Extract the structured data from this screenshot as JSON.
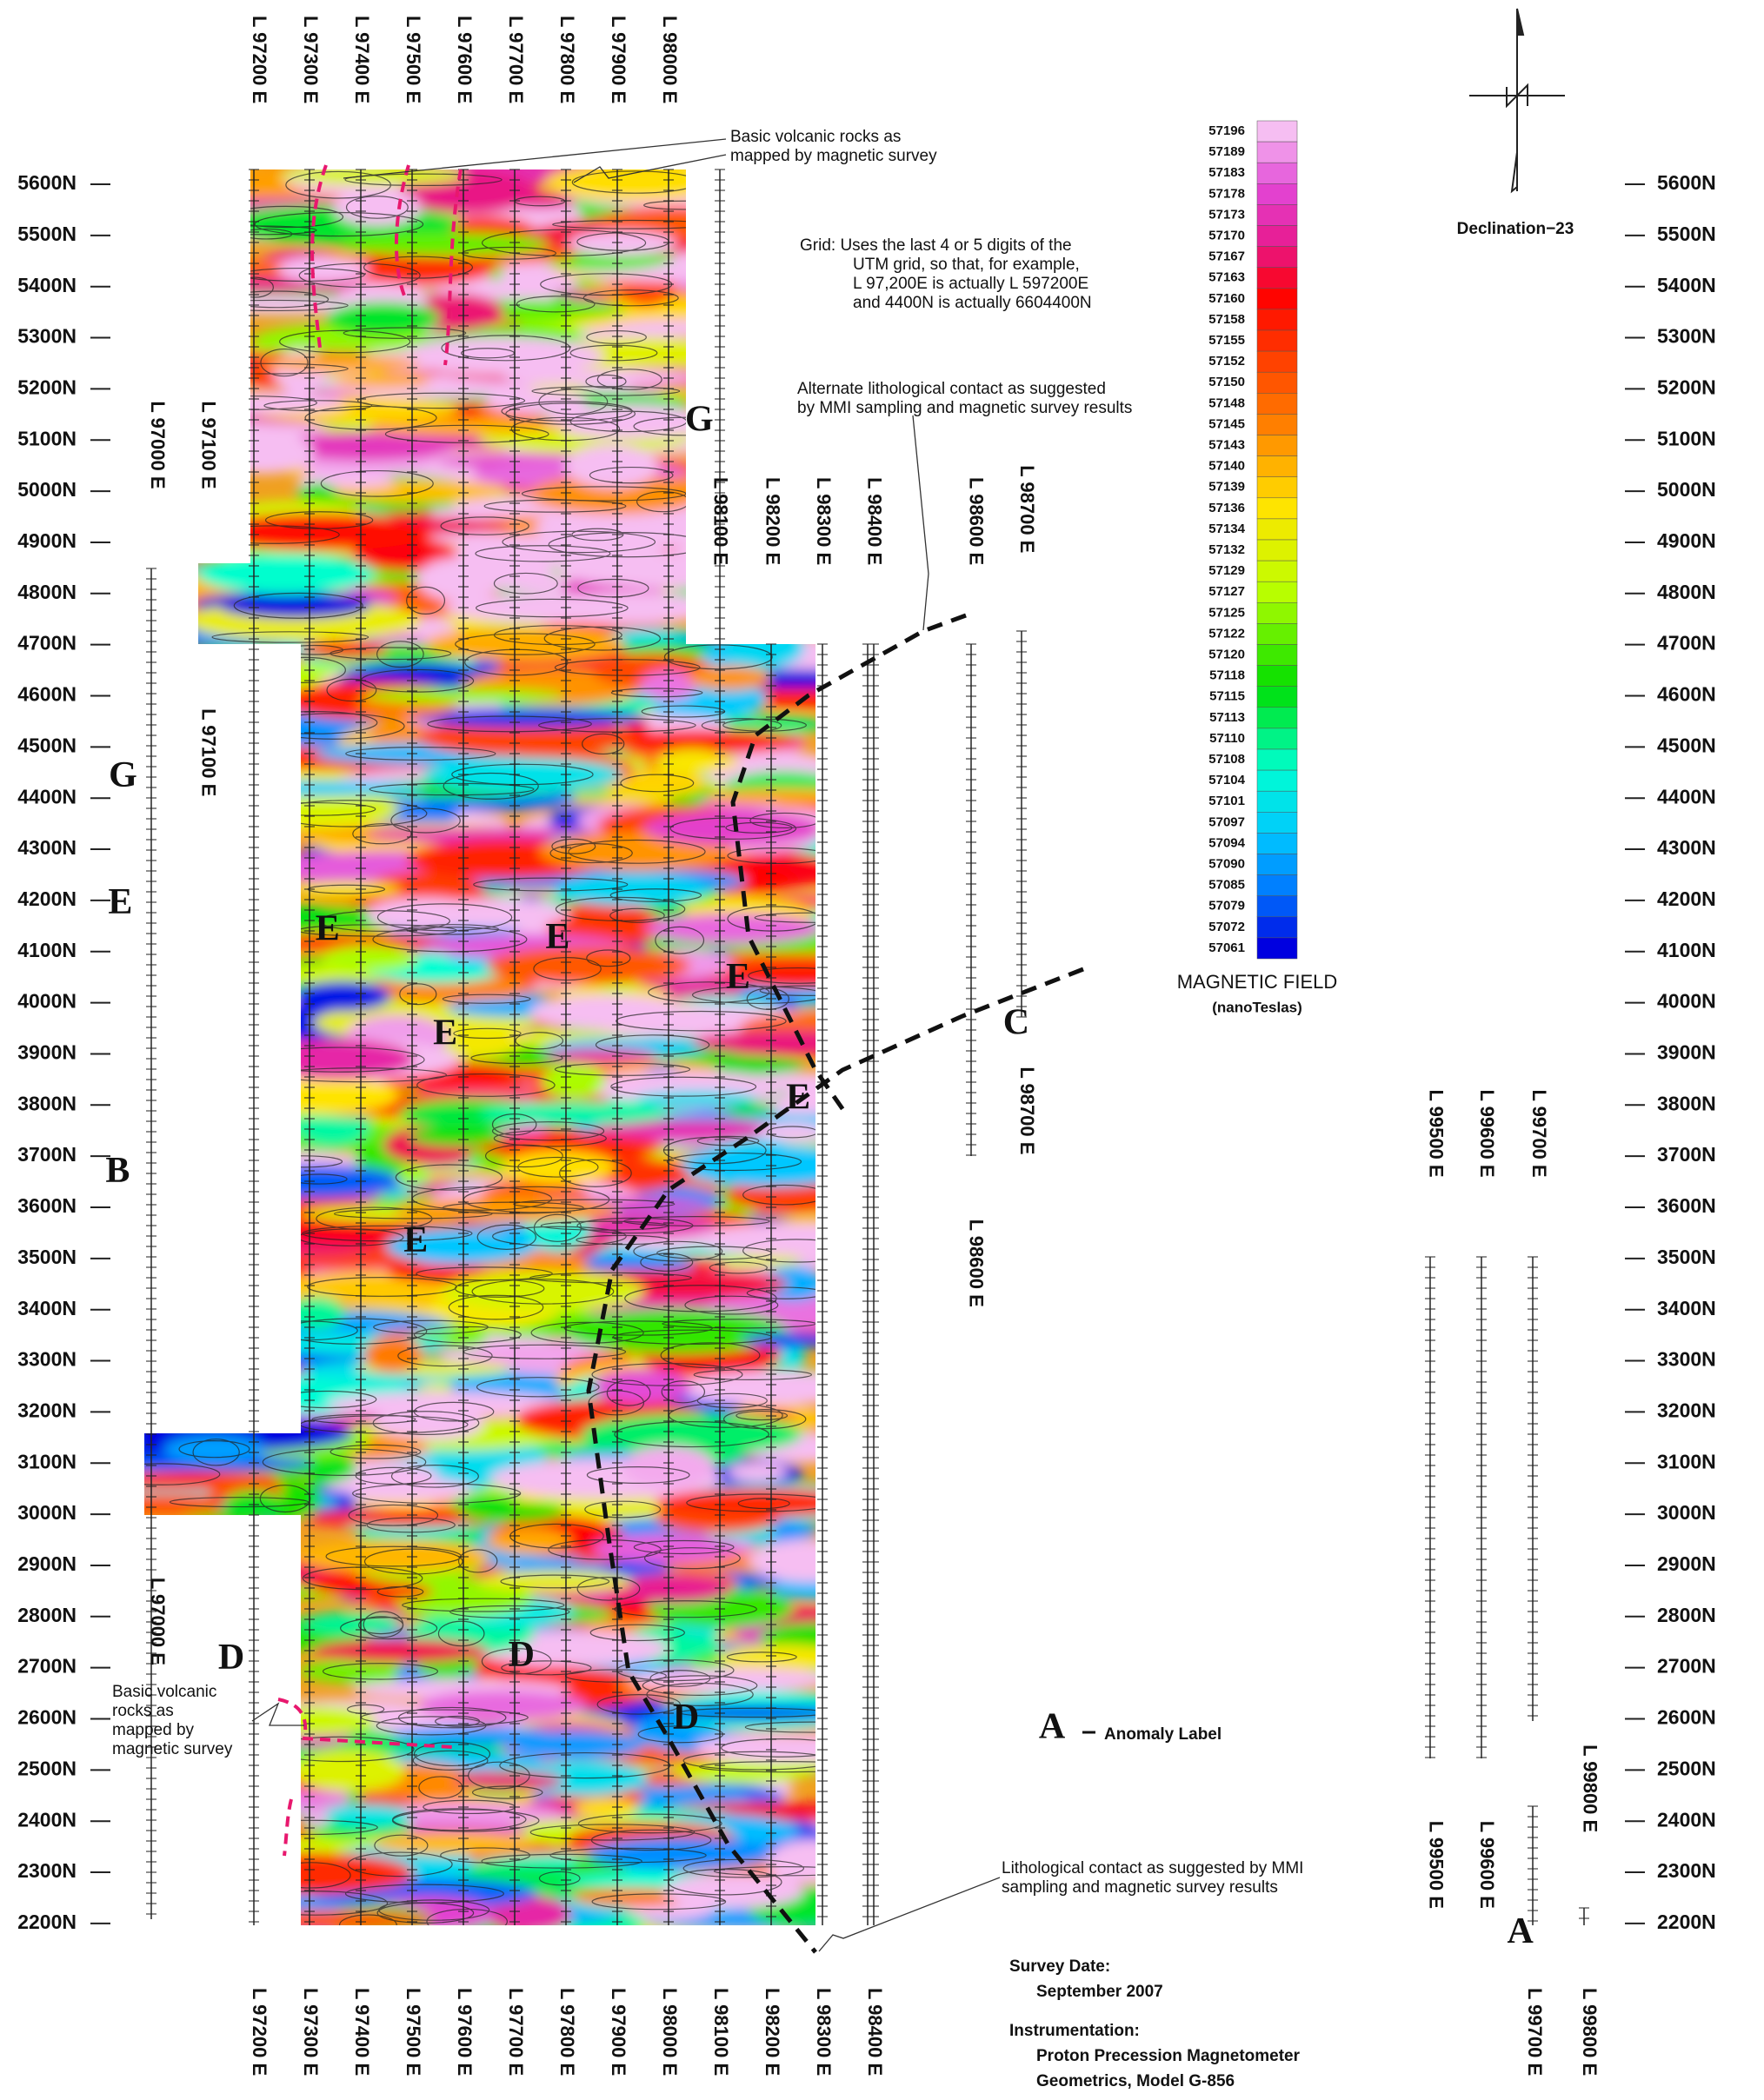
{
  "northings": [
    "5600N",
    "5500N",
    "5400N",
    "5300N",
    "5200N",
    "5100N",
    "5000N",
    "4900N",
    "4800N",
    "4700N",
    "4600N",
    "4500N",
    "4400N",
    "4300N",
    "4200N",
    "4100N",
    "4000N",
    "3900N",
    "3800N",
    "3700N",
    "3600N",
    "3500N",
    "3400N",
    "3300N",
    "3200N",
    "3100N",
    "3000N",
    "2900N",
    "2800N",
    "2700N",
    "2600N",
    "2500N",
    "2400N",
    "2300N",
    "2200N"
  ],
  "top_lines": [
    "L 97200 E",
    "L 97300 E",
    "L 97400 E",
    "L 97500 E",
    "L 97600 E",
    "L 97700 E",
    "L 97800 E",
    "L 97900 E",
    "L 98000 E"
  ],
  "bottom_lines": [
    "L 97200 E",
    "L 97300 E",
    "L 97400 E",
    "L 97500 E",
    "L 97600 E",
    "L 97700 E",
    "L 97800 E",
    "L 97900 E",
    "L 98000 E",
    "L 98100 E",
    "L 98200 E",
    "L 98300 E",
    "L 98400 E",
    "L 99700 E",
    "L 99800 E"
  ],
  "mid_lines": [
    "L 97000 E",
    "L 97100 E",
    "L 97100 E",
    "L 98100 E",
    "L 98200 E",
    "L 98300 E",
    "L 98400 E",
    "L 98600 E",
    "L 98700 E",
    "L 98700 E",
    "L 98600 E",
    "L 99500 E",
    "L 99600 E",
    "L 99700 E",
    "L 97000 E",
    "L 99800 E",
    "L 99500 E",
    "L 99600 E"
  ],
  "legend": {
    "title": "MAGNETIC FIELD",
    "units": "(nanoTeslas)",
    "values": [
      57196,
      57189,
      57183,
      57178,
      57173,
      57170,
      57167,
      57163,
      57160,
      57158,
      57155,
      57152,
      57150,
      57148,
      57145,
      57143,
      57140,
      57139,
      57136,
      57134,
      57132,
      57129,
      57127,
      57125,
      57122,
      57120,
      57118,
      57115,
      57113,
      57110,
      57108,
      57104,
      57101,
      57097,
      57094,
      57090,
      57085,
      57079,
      57072,
      57061
    ]
  },
  "declination": "Declination−23",
  "annotations": {
    "volcanic_top": [
      "Basic volcanic rocks as",
      "mapped by magnetic survey"
    ],
    "grid": [
      "Grid:  Uses the last 4 or 5 digits of the",
      "UTM grid, so that, for example,",
      "L 97,200E is actually L 597200E",
      "and 4400N is actually 6604400N"
    ],
    "alternate": [
      "Alternate lithological contact as suggested",
      "by MMI sampling and magnetic survey results"
    ],
    "volcanic_left": [
      "Basic volcanic",
      "rocks as",
      "mapped by",
      "magnetic survey"
    ],
    "lithological": [
      "Lithological contact as suggested by MMI",
      "sampling and magnetic survey results"
    ]
  },
  "anomaly_labels": [
    "G",
    "G",
    "E",
    "E",
    "E",
    "E",
    "E",
    "E",
    "B",
    "E",
    "D",
    "D",
    "D",
    "C",
    "A"
  ],
  "anomaly_legend": {
    "letter": "A",
    "text": "Anomaly Label"
  },
  "survey": {
    "date_label": "Survey Date:",
    "date": "September 2007",
    "instrument_label": "Instrumentation:",
    "instrument": [
      "Proton Precession Magnetometer",
      "Geometrics, Model G-856"
    ]
  }
}
